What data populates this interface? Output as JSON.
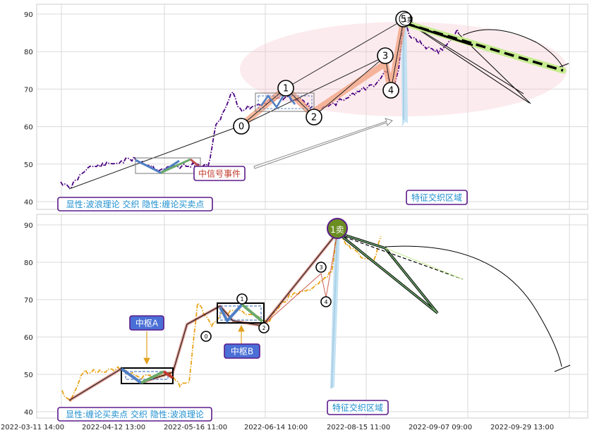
{
  "chart_data": [
    {
      "type": "line",
      "panel": "top",
      "ylim": [
        38,
        93
      ],
      "y_ticks": [
        40,
        50,
        60,
        70,
        80,
        90
      ],
      "grid": true,
      "series_color": "#4b0082",
      "wave_labels": [
        "0",
        "1",
        "2",
        "3",
        "4",
        "5"
      ],
      "wave_extra_label": "1卖",
      "annotations": {
        "legend_box": "显性:波浪理论 交织 隐性:缠论买卖点",
        "mid_event": "中信号事件",
        "cross_zone": "特征交织区域"
      }
    },
    {
      "type": "line",
      "panel": "bottom",
      "ylim": [
        38,
        93
      ],
      "y_ticks": [
        40,
        50,
        60,
        70,
        80,
        90
      ],
      "grid": true,
      "series_color": "#e8a317",
      "wave_labels": [
        "1",
        "2",
        "3",
        "4"
      ],
      "sell_label": "1卖",
      "annotations": {
        "legend_box": "显性:缠论买卖点 交织 隐性:波浪理论",
        "zhongshu_a": "中枢A",
        "zhongshu_b": "中枢B",
        "cross_zone": "特征交织区域"
      },
      "x_ticks": [
        "2022-03-11 14:00",
        "2022-04-12 13:00",
        "2022-05-16 11:00",
        "2022-06-14 10:00",
        "2022-08-15 11:00",
        "2022-09-07 09:00",
        "2022-09-29 13:00"
      ]
    }
  ]
}
